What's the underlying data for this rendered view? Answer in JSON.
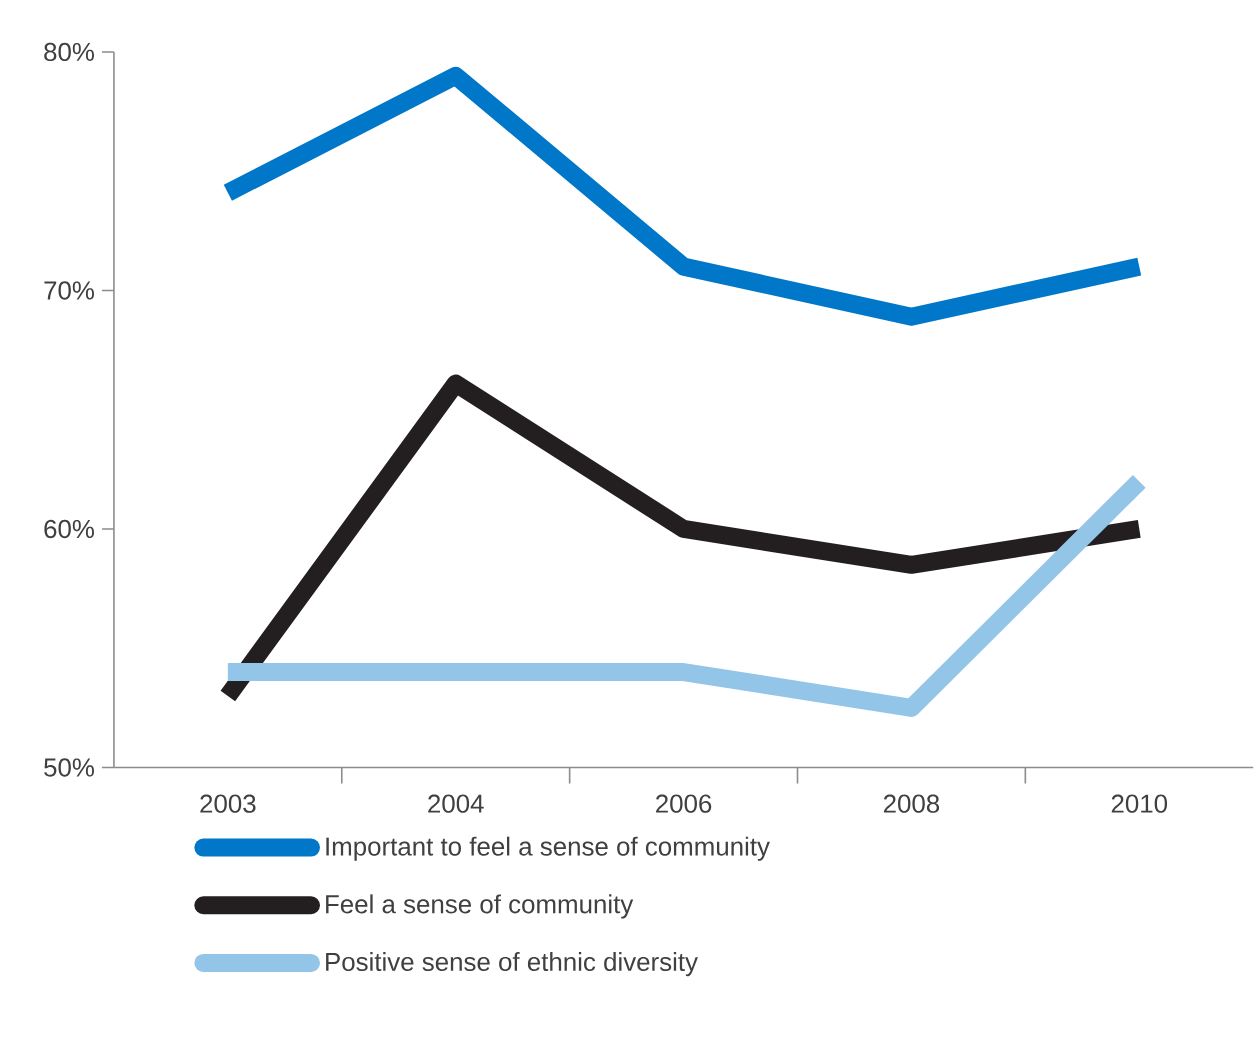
{
  "chart_data": {
    "type": "line",
    "categories": [
      "2003",
      "2004",
      "2006",
      "2008",
      "2010"
    ],
    "series": [
      {
        "name": "Important to feel a sense of community",
        "color": "#0077c8",
        "values": [
          74.1,
          79,
          71,
          68.9,
          71
        ]
      },
      {
        "name": "Feel a sense of community",
        "color": "#231f20",
        "values": [
          53,
          66.1,
          60,
          58.5,
          60
        ]
      },
      {
        "name": "Positive sense of ethnic diversity",
        "color": "#93c5e8",
        "values": [
          54,
          54,
          54,
          52.5,
          62
        ]
      }
    ],
    "ylim": [
      50,
      80
    ],
    "yticks": [
      {
        "value": 50,
        "label": "50%"
      },
      {
        "value": 60,
        "label": "60%"
      },
      {
        "value": 70,
        "label": "70%"
      },
      {
        "value": 80,
        "label": "80%"
      }
    ],
    "legend": "bottom",
    "line_style": "solid"
  }
}
